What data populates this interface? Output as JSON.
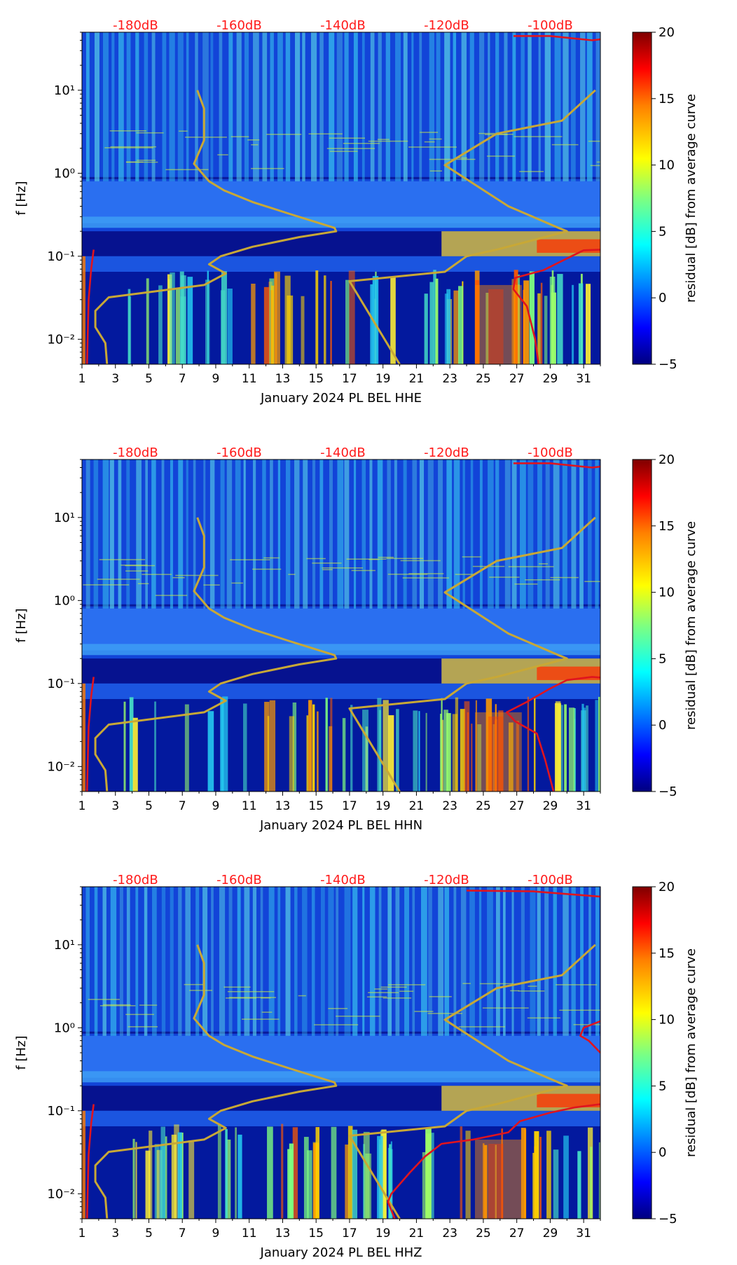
{
  "figure": {
    "description_hidden": false
  },
  "colors": {
    "db_label": "#ff1a1a",
    "model_curve": "#c8a836",
    "psd_curve": "#e0141e",
    "colormap": [
      "#00007f",
      "#0000ff",
      "#007fff",
      "#00ffff",
      "#7fff7f",
      "#ffff00",
      "#ff7f00",
      "#ff0000",
      "#7f0000"
    ]
  },
  "chart_data": [
    {
      "type": "heatmap",
      "channel": "HHE",
      "xlabel": "January 2024 PL BEL  HHE",
      "ylabel": "f [Hz]",
      "x_ticks": [
        "1",
        "3",
        "5",
        "7",
        "9",
        "11",
        "13",
        "15",
        "17",
        "19",
        "21",
        "23",
        "25",
        "27",
        "29",
        "31"
      ],
      "xlim": [
        1,
        32
      ],
      "y_ticks": [
        "10⁻²",
        "10⁻¹",
        "10⁰",
        "10¹"
      ],
      "ylim_hz": [
        0.005,
        50
      ],
      "db_labels": [
        {
          "text": "-180dB",
          "day": 4.2
        },
        {
          "text": "-160dB",
          "day": 10.4
        },
        {
          "text": "-140dB",
          "day": 16.6
        },
        {
          "text": "-120dB",
          "day": 22.8
        },
        {
          "text": "-100dB",
          "day": 29.0
        }
      ],
      "colorbar": {
        "label": "residual [dB] from average curve",
        "range": [
          -5,
          20
        ],
        "ticks": [
          "−5",
          "0",
          "5",
          "10",
          "15",
          "20"
        ]
      },
      "model_curves": [
        {
          "name": "low-noise model",
          "points": [
            [
              2.5,
              0.005
            ],
            [
              2.4,
              0.009
            ],
            [
              1.8,
              0.014
            ],
            [
              1.8,
              0.022
            ],
            [
              2.6,
              0.032
            ],
            [
              8.3,
              0.045
            ],
            [
              9.6,
              0.062
            ],
            [
              8.6,
              0.08
            ],
            [
              9.3,
              0.1
            ],
            [
              11.2,
              0.13
            ],
            [
              14.0,
              0.17
            ],
            [
              16.2,
              0.2
            ],
            [
              16.1,
              0.22
            ],
            [
              13.5,
              0.32
            ],
            [
              11.2,
              0.45
            ],
            [
              9.5,
              0.62
            ],
            [
              8.6,
              0.8
            ],
            [
              7.7,
              1.3
            ],
            [
              8.3,
              2.5
            ],
            [
              8.3,
              6.0
            ],
            [
              7.9,
              10
            ]
          ]
        },
        {
          "name": "high-noise model",
          "points": [
            [
              20.0,
              0.005
            ],
            [
              17.0,
              0.05
            ],
            [
              22.7,
              0.065
            ],
            [
              24.0,
              0.1
            ],
            [
              25.8,
              0.12
            ],
            [
              30.0,
              0.2
            ],
            [
              29.5,
              0.22
            ],
            [
              26.5,
              0.4
            ],
            [
              22.7,
              1.25
            ],
            [
              25.8,
              3.0
            ],
            [
              29.7,
              4.3
            ],
            [
              31.7,
              10
            ]
          ]
        }
      ],
      "psd_curves": [
        {
          "name": "PSD lower branch",
          "points": [
            [
              28.3,
              0.005
            ],
            [
              28.1,
              0.01
            ],
            [
              27.6,
              0.025
            ],
            [
              26.8,
              0.04
            ],
            [
              26.9,
              0.055
            ],
            [
              28.6,
              0.068
            ],
            [
              29.8,
              0.09
            ],
            [
              31.0,
              0.118
            ],
            [
              32.0,
              0.12
            ]
          ]
        },
        {
          "name": "PSD upper branch",
          "points": [
            [
              26.8,
              45
            ],
            [
              29.0,
              45
            ],
            [
              31.5,
              40
            ],
            [
              32.0,
              41
            ]
          ]
        },
        {
          "name": "PSD left edge",
          "points": [
            [
              1.3,
              0.005
            ],
            [
              1.4,
              0.03
            ],
            [
              1.55,
              0.07
            ],
            [
              1.7,
              0.12
            ]
          ]
        }
      ]
    },
    {
      "type": "heatmap",
      "channel": "HHN",
      "xlabel": "January 2024 PL BEL  HHN",
      "ylabel": "f [Hz]",
      "x_ticks": [
        "1",
        "3",
        "5",
        "7",
        "9",
        "11",
        "13",
        "15",
        "17",
        "19",
        "21",
        "23",
        "25",
        "27",
        "29",
        "31"
      ],
      "xlim": [
        1,
        32
      ],
      "y_ticks": [
        "10⁻²",
        "10⁻¹",
        "10⁰",
        "10¹"
      ],
      "ylim_hz": [
        0.005,
        50
      ],
      "db_labels": [
        {
          "text": "-180dB",
          "day": 4.2
        },
        {
          "text": "-160dB",
          "day": 10.4
        },
        {
          "text": "-140dB",
          "day": 16.6
        },
        {
          "text": "-120dB",
          "day": 22.8
        },
        {
          "text": "-100dB",
          "day": 29.0
        }
      ],
      "colorbar": {
        "label": "residual [dB] from average curve",
        "range": [
          -5,
          20
        ],
        "ticks": [
          "−5",
          "0",
          "5",
          "10",
          "15",
          "20"
        ]
      },
      "model_curves": [
        {
          "name": "low-noise model",
          "points": [
            [
              2.5,
              0.005
            ],
            [
              2.4,
              0.009
            ],
            [
              1.8,
              0.014
            ],
            [
              1.8,
              0.022
            ],
            [
              2.6,
              0.032
            ],
            [
              8.3,
              0.045
            ],
            [
              9.6,
              0.062
            ],
            [
              8.6,
              0.08
            ],
            [
              9.3,
              0.1
            ],
            [
              11.2,
              0.13
            ],
            [
              14.0,
              0.17
            ],
            [
              16.2,
              0.2
            ],
            [
              16.1,
              0.22
            ],
            [
              13.5,
              0.32
            ],
            [
              11.2,
              0.45
            ],
            [
              9.5,
              0.62
            ],
            [
              8.6,
              0.8
            ],
            [
              7.7,
              1.3
            ],
            [
              8.3,
              2.5
            ],
            [
              8.3,
              6.0
            ],
            [
              7.9,
              10
            ]
          ]
        },
        {
          "name": "high-noise model",
          "points": [
            [
              20.0,
              0.005
            ],
            [
              17.0,
              0.05
            ],
            [
              22.7,
              0.065
            ],
            [
              24.0,
              0.1
            ],
            [
              25.8,
              0.12
            ],
            [
              30.0,
              0.2
            ],
            [
              29.5,
              0.22
            ],
            [
              26.5,
              0.4
            ],
            [
              22.7,
              1.25
            ],
            [
              25.8,
              3.0
            ],
            [
              29.7,
              4.3
            ],
            [
              31.7,
              10
            ]
          ]
        }
      ],
      "psd_curves": [
        {
          "name": "PSD lower branch",
          "points": [
            [
              29.2,
              0.005
            ],
            [
              28.7,
              0.012
            ],
            [
              28.2,
              0.025
            ],
            [
              26.9,
              0.035
            ],
            [
              26.4,
              0.045
            ],
            [
              27.6,
              0.06
            ],
            [
              28.9,
              0.085
            ],
            [
              30.0,
              0.11
            ],
            [
              31.5,
              0.12
            ],
            [
              32.0,
              0.118
            ]
          ]
        },
        {
          "name": "PSD upper branch",
          "points": [
            [
              26.8,
              45
            ],
            [
              29.0,
              45
            ],
            [
              31.5,
              40
            ],
            [
              32.0,
              41
            ]
          ]
        },
        {
          "name": "PSD left edge",
          "points": [
            [
              1.3,
              0.005
            ],
            [
              1.4,
              0.03
            ],
            [
              1.55,
              0.07
            ],
            [
              1.7,
              0.12
            ]
          ]
        }
      ]
    },
    {
      "type": "heatmap",
      "channel": "HHZ",
      "xlabel": "January 2024 PL BEL  HHZ",
      "ylabel": "f [Hz]",
      "x_ticks": [
        "1",
        "3",
        "5",
        "7",
        "9",
        "11",
        "13",
        "15",
        "17",
        "19",
        "21",
        "23",
        "25",
        "27",
        "29",
        "31"
      ],
      "xlim": [
        1,
        32
      ],
      "y_ticks": [
        "10⁻²",
        "10⁻¹",
        "10⁰",
        "10¹"
      ],
      "ylim_hz": [
        0.005,
        50
      ],
      "db_labels": [
        {
          "text": "-180dB",
          "day": 4.2
        },
        {
          "text": "-160dB",
          "day": 10.4
        },
        {
          "text": "-140dB",
          "day": 16.6
        },
        {
          "text": "-120dB",
          "day": 22.8
        },
        {
          "text": "-100dB",
          "day": 29.0
        }
      ],
      "colorbar": {
        "label": "residual [dB] from average curve",
        "range": [
          -5,
          20
        ],
        "ticks": [
          "−5",
          "0",
          "5",
          "10",
          "15",
          "20"
        ]
      },
      "model_curves": [
        {
          "name": "low-noise model",
          "points": [
            [
              2.5,
              0.005
            ],
            [
              2.4,
              0.009
            ],
            [
              1.8,
              0.014
            ],
            [
              1.8,
              0.022
            ],
            [
              2.6,
              0.032
            ],
            [
              8.3,
              0.045
            ],
            [
              9.6,
              0.062
            ],
            [
              8.6,
              0.08
            ],
            [
              9.3,
              0.1
            ],
            [
              11.2,
              0.13
            ],
            [
              14.0,
              0.17
            ],
            [
              16.2,
              0.2
            ],
            [
              16.1,
              0.22
            ],
            [
              13.5,
              0.32
            ],
            [
              11.2,
              0.45
            ],
            [
              9.5,
              0.62
            ],
            [
              8.6,
              0.8
            ],
            [
              7.7,
              1.3
            ],
            [
              8.3,
              2.5
            ],
            [
              8.3,
              6.0
            ],
            [
              7.9,
              10
            ]
          ]
        },
        {
          "name": "high-noise model",
          "points": [
            [
              20.0,
              0.005
            ],
            [
              17.0,
              0.05
            ],
            [
              22.7,
              0.065
            ],
            [
              24.0,
              0.1
            ],
            [
              25.8,
              0.12
            ],
            [
              30.0,
              0.2
            ],
            [
              29.5,
              0.22
            ],
            [
              26.5,
              0.4
            ],
            [
              22.7,
              1.25
            ],
            [
              25.8,
              3.0
            ],
            [
              29.7,
              4.3
            ],
            [
              31.7,
              10
            ]
          ]
        }
      ],
      "psd_curves": [
        {
          "name": "PSD lower branch",
          "points": [
            [
              19.7,
              0.005
            ],
            [
              19.3,
              0.008
            ],
            [
              19.5,
              0.01
            ],
            [
              20.6,
              0.018
            ],
            [
              21.5,
              0.028
            ],
            [
              22.5,
              0.04
            ],
            [
              24.4,
              0.045
            ],
            [
              26.5,
              0.055
            ],
            [
              27.2,
              0.075
            ],
            [
              29.0,
              0.095
            ],
            [
              30.5,
              0.11
            ],
            [
              32.0,
              0.12
            ]
          ]
        },
        {
          "name": "PSD upper branch",
          "points": [
            [
              24.0,
              45
            ],
            [
              28.0,
              44
            ],
            [
              32.0,
              38
            ]
          ]
        },
        {
          "name": "PSD right loop",
          "points": [
            [
              32.0,
              1.2
            ],
            [
              31.0,
              1.0
            ],
            [
              30.8,
              0.8
            ],
            [
              31.3,
              0.7
            ],
            [
              32.0,
              0.5
            ]
          ]
        },
        {
          "name": "PSD left edge",
          "points": [
            [
              1.3,
              0.005
            ],
            [
              1.4,
              0.03
            ],
            [
              1.55,
              0.07
            ],
            [
              1.7,
              0.12
            ]
          ]
        }
      ]
    }
  ]
}
